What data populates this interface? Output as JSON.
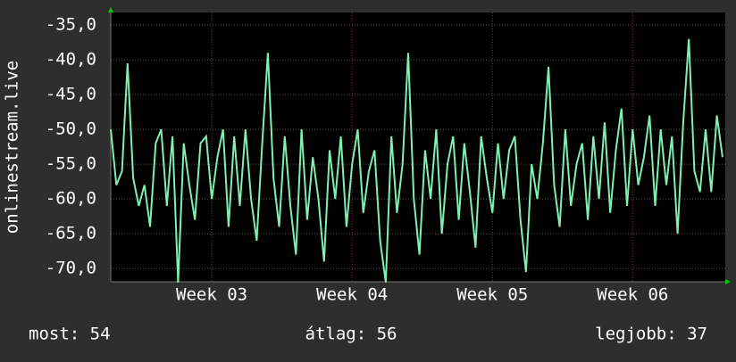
{
  "chart_data": {
    "type": "line",
    "y_label": "onlinestream.live",
    "x": [
      2.28,
      2.32,
      2.36,
      2.4,
      2.44,
      2.48,
      2.52,
      2.56,
      2.6,
      2.64,
      2.68,
      2.72,
      2.76,
      2.8,
      2.84,
      2.88,
      2.92,
      2.96,
      3.0,
      3.04,
      3.08,
      3.12,
      3.16,
      3.2,
      3.24,
      3.28,
      3.32,
      3.36,
      3.4,
      3.44,
      3.48,
      3.52,
      3.56,
      3.6,
      3.64,
      3.68,
      3.72,
      3.76,
      3.8,
      3.84,
      3.88,
      3.92,
      3.96,
      4.0,
      4.04,
      4.08,
      4.12,
      4.16,
      4.2,
      4.24,
      4.28,
      4.32,
      4.36,
      4.4,
      4.44,
      4.48,
      4.52,
      4.56,
      4.6,
      4.64,
      4.68,
      4.72,
      4.76,
      4.8,
      4.84,
      4.88,
      4.92,
      4.96,
      5.0,
      5.04,
      5.08,
      5.12,
      5.16,
      5.2,
      5.24,
      5.28,
      5.32,
      5.36,
      5.4,
      5.44,
      5.48,
      5.52,
      5.56,
      5.6,
      5.64,
      5.68,
      5.72,
      5.76,
      5.8,
      5.84,
      5.88,
      5.92,
      5.96,
      6.0,
      6.04,
      6.08,
      6.12,
      6.16,
      6.2,
      6.24,
      6.28,
      6.32,
      6.36,
      6.4,
      6.44,
      6.48,
      6.52,
      6.56,
      6.6,
      6.64
    ],
    "series": [
      {
        "color": "#80f0b0",
        "values": [
          -50,
          -58,
          -56,
          -40.5,
          -57,
          -61,
          -58,
          -64,
          -52,
          -50,
          -61,
          -51,
          -72,
          -52,
          -58,
          -63,
          -52,
          -51,
          -60,
          -54,
          -50,
          -64,
          -51,
          -61,
          -50,
          -60,
          -66,
          -52,
          -39,
          -57,
          -64,
          -51,
          -61,
          -68,
          -50,
          -63,
          -54,
          -60,
          -69,
          -53,
          -60,
          -51,
          -64,
          -55,
          -50,
          -62,
          -56,
          -53,
          -66,
          -72,
          -51,
          -62,
          -55,
          -39,
          -60,
          -68,
          -53,
          -60,
          -50,
          -65,
          -55,
          -51,
          -63,
          -52,
          -59,
          -67,
          -51,
          -57,
          -62,
          -52,
          -60,
          -53,
          -51,
          -63,
          -70.5,
          -55,
          -60,
          -52,
          -41,
          -58,
          -64,
          -50,
          -61,
          -55,
          -52,
          -63,
          -51,
          -60,
          -49,
          -62,
          -53,
          -47,
          -61,
          -50,
          -58,
          -54,
          -48,
          -61,
          -50,
          -58,
          -51,
          -65,
          -49,
          -37,
          -56,
          -59,
          -50,
          -59,
          -48,
          -54
        ]
      }
    ],
    "xlim": [
      2.28,
      6.66
    ],
    "xticks": [
      {
        "value": 3,
        "label": "Week 03"
      },
      {
        "value": 4,
        "label": "Week 04"
      },
      {
        "value": 5,
        "label": "Week 05"
      },
      {
        "value": 6,
        "label": "Week 06"
      }
    ],
    "ylim": [
      -71.9,
      -33.2
    ],
    "yticks": [
      {
        "value": -35,
        "label": "-35,0"
      },
      {
        "value": -40,
        "label": "-40,0"
      },
      {
        "value": -45,
        "label": "-45,0"
      },
      {
        "value": -50,
        "label": "-50,0"
      },
      {
        "value": -55,
        "label": "-55,0"
      },
      {
        "value": -60,
        "label": "-60,0"
      },
      {
        "value": -65,
        "label": "-65,0"
      },
      {
        "value": -70,
        "label": "-70,0"
      }
    ],
    "grid": true,
    "stats": [
      "most: 54",
      "átlag: 56",
      "legjobb: 37"
    ]
  }
}
